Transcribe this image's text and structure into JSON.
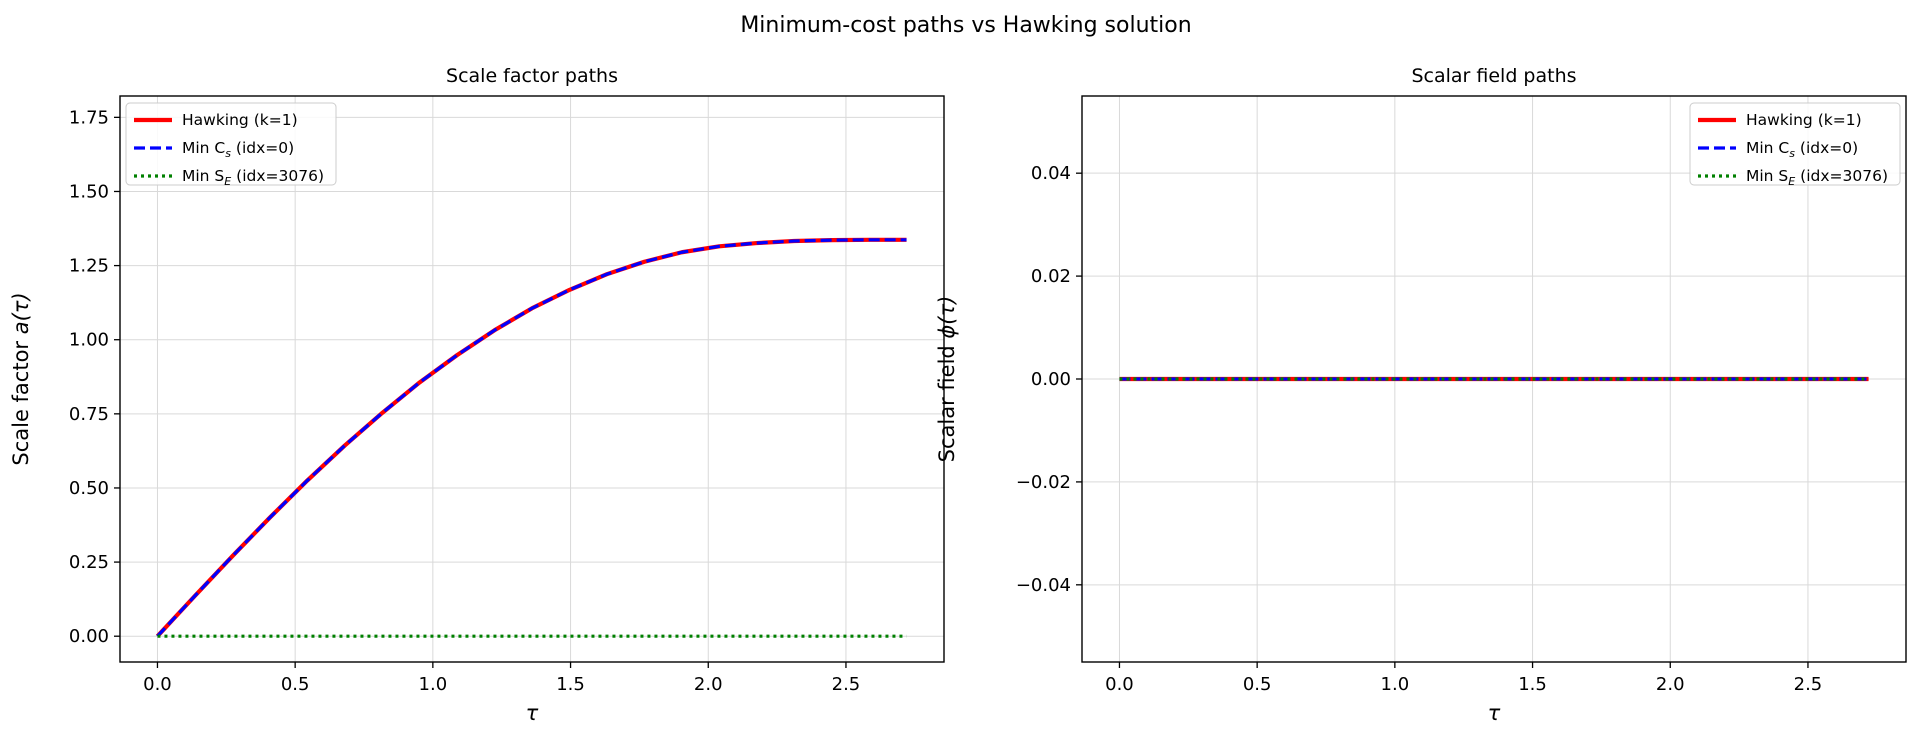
{
  "suptitle": "Minimum-cost paths vs Hawking solution",
  "colors": {
    "hawking": "#ff0000",
    "min_cs": "#0000ff",
    "min_se": "#008000"
  },
  "chart_data": [
    {
      "type": "line",
      "title": "Scale factor paths",
      "xlabel_symbol": "τ",
      "ylabel_prefix": "Scale factor ",
      "ylabel_symbol": "a(τ)",
      "xlim": [
        -0.136,
        2.856
      ],
      "ylim": [
        -0.087,
        1.822
      ],
      "xticks": [
        0.0,
        0.5,
        1.0,
        1.5,
        2.0,
        2.5
      ],
      "xtick_labels": [
        "0.0",
        "0.5",
        "1.0",
        "1.5",
        "2.0",
        "2.5"
      ],
      "yticks": [
        0.0,
        0.25,
        0.5,
        0.75,
        1.0,
        1.25,
        1.5,
        1.75
      ],
      "ytick_labels": [
        "0.00",
        "0.25",
        "0.50",
        "0.75",
        "1.00",
        "1.25",
        "1.50",
        "1.75"
      ],
      "grid": true,
      "legend_position": "upper-left",
      "series": [
        {
          "name": "Hawking (k=1)",
          "style": "solid",
          "x": [
            0.0,
            0.136,
            0.272,
            0.408,
            0.544,
            0.68,
            0.816,
            0.952,
            1.088,
            1.224,
            1.36,
            1.496,
            1.632,
            1.768,
            1.904,
            2.04,
            2.176,
            2.312,
            2.448,
            2.584,
            2.72
          ],
          "y": [
            0.0,
            0.136,
            0.27,
            0.4,
            0.525,
            0.643,
            0.753,
            0.856,
            0.948,
            1.032,
            1.106,
            1.168,
            1.221,
            1.263,
            1.295,
            1.315,
            1.326,
            1.333,
            1.336,
            1.337,
            1.337
          ]
        },
        {
          "name": "Min C_s (idx=0)",
          "style": "dashed",
          "x": [
            0.0,
            0.136,
            0.272,
            0.408,
            0.544,
            0.68,
            0.816,
            0.952,
            1.088,
            1.224,
            1.36,
            1.496,
            1.632,
            1.768,
            1.904,
            2.04,
            2.176,
            2.312,
            2.448,
            2.584,
            2.72
          ],
          "y": [
            0.0,
            0.136,
            0.27,
            0.4,
            0.525,
            0.643,
            0.753,
            0.856,
            0.948,
            1.032,
            1.106,
            1.168,
            1.221,
            1.263,
            1.295,
            1.315,
            1.326,
            1.333,
            1.336,
            1.337,
            1.337
          ]
        },
        {
          "name": "Min S_E (idx=3076)",
          "style": "dotted",
          "x": [
            0.0,
            2.72
          ],
          "y": [
            0.0,
            0.0
          ]
        }
      ],
      "legend_entries": [
        {
          "text": "Hawking (k=1)",
          "sub": ""
        },
        {
          "text": "Min C",
          "sub": "s",
          "suffix": " (idx=0)"
        },
        {
          "text": "Min S",
          "sub": "E",
          "suffix": " (idx=3076)"
        }
      ]
    },
    {
      "type": "line",
      "title": "Scalar field paths",
      "xlabel_symbol": "τ",
      "ylabel_prefix": "Scalar field ",
      "ylabel_symbol": "ϕ(τ)",
      "xlim": [
        -0.136,
        2.856
      ],
      "ylim": [
        -0.055,
        0.055
      ],
      "xticks": [
        0.0,
        0.5,
        1.0,
        1.5,
        2.0,
        2.5
      ],
      "xtick_labels": [
        "0.0",
        "0.5",
        "1.0",
        "1.5",
        "2.0",
        "2.5"
      ],
      "yticks": [
        -0.04,
        -0.02,
        0.0,
        0.02,
        0.04
      ],
      "ytick_labels": [
        "−0.04",
        "−0.02",
        "0.00",
        "0.02",
        "0.04"
      ],
      "grid": true,
      "legend_position": "upper-right",
      "series": [
        {
          "name": "Hawking (k=1)",
          "style": "solid",
          "x": [
            0.0,
            2.72
          ],
          "y": [
            0.0,
            0.0
          ]
        },
        {
          "name": "Min C_s (idx=0)",
          "style": "dashed",
          "x": [
            0.0,
            2.72
          ],
          "y": [
            0.0,
            0.0
          ]
        },
        {
          "name": "Min S_E (idx=3076)",
          "style": "dotted",
          "x": [
            0.0,
            2.72
          ],
          "y": [
            0.0,
            0.0
          ]
        }
      ],
      "legend_entries": [
        {
          "text": "Hawking (k=1)",
          "sub": ""
        },
        {
          "text": "Min C",
          "sub": "s",
          "suffix": " (idx=0)"
        },
        {
          "text": "Min S",
          "sub": "E",
          "suffix": " (idx=3076)"
        }
      ]
    }
  ]
}
